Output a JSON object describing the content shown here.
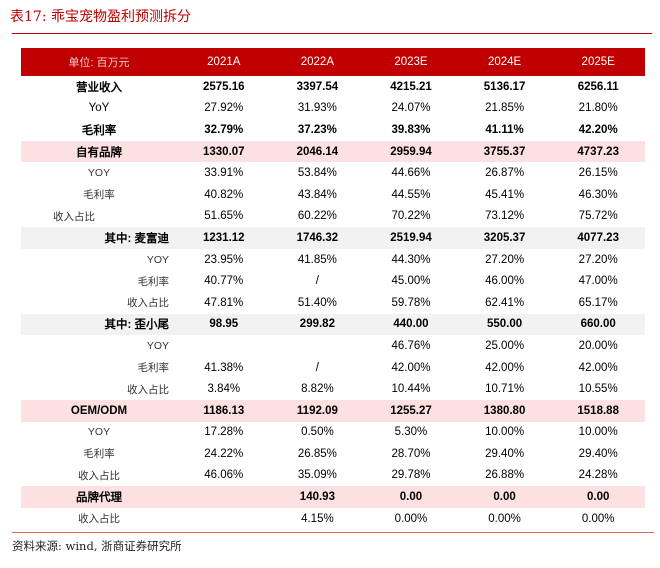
{
  "title": "表17:  乖宝宠物盈利预测拆分",
  "header": [
    "单位: 百万元",
    "2021A",
    "2022A",
    "2023E",
    "2024E",
    "2025E"
  ],
  "rows": [
    {
      "label": "营业收入",
      "v": [
        "2575.16",
        "3397.54",
        "4215.21",
        "5136.17",
        "6256.11"
      ]
    },
    {
      "label": "YoY",
      "v": [
        "27.92%",
        "31.93%",
        "24.07%",
        "21.85%",
        "21.80%"
      ]
    },
    {
      "label": "毛利率",
      "v": [
        "32.79%",
        "37.23%",
        "39.83%",
        "41.11%",
        "42.20%"
      ]
    },
    {
      "label": "自有品牌",
      "v": [
        "1330.07",
        "2046.14",
        "2959.94",
        "3755.37",
        "4737.23"
      ]
    },
    {
      "label": "YOY",
      "v": [
        "33.91%",
        "53.84%",
        "44.66%",
        "26.87%",
        "26.15%"
      ]
    },
    {
      "label": "毛利率",
      "v": [
        "40.82%",
        "43.84%",
        "44.55%",
        "45.41%",
        "46.30%"
      ]
    },
    {
      "label": "收入占比",
      "v": [
        "51.65%",
        "60.22%",
        "70.22%",
        "73.12%",
        "75.72%"
      ]
    },
    {
      "label": "其中: 麦富迪",
      "v": [
        "1231.12",
        "1746.32",
        "2519.94",
        "3205.37",
        "4077.23"
      ]
    },
    {
      "label": "YOY",
      "v": [
        "23.95%",
        "41.85%",
        "44.30%",
        "27.20%",
        "27.20%"
      ]
    },
    {
      "label": "毛利率",
      "v": [
        "40.77%",
        "/",
        "45.00%",
        "46.00%",
        "47.00%"
      ]
    },
    {
      "label": "收入占比",
      "v": [
        "47.81%",
        "51.40%",
        "59.78%",
        "62.41%",
        "65.17%"
      ]
    },
    {
      "label": "其中: 歪小尾",
      "v": [
        "98.95",
        "299.82",
        "440.00",
        "550.00",
        "660.00"
      ]
    },
    {
      "label": "YOY",
      "v": [
        "",
        "",
        "46.76%",
        "25.00%",
        "20.00%"
      ]
    },
    {
      "label": "毛利率",
      "v": [
        "41.38%",
        "/",
        "42.00%",
        "42.00%",
        "42.00%"
      ]
    },
    {
      "label": "收入占比",
      "v": [
        "3.84%",
        "8.82%",
        "10.44%",
        "10.71%",
        "10.55%"
      ]
    },
    {
      "label": "OEM/ODM",
      "v": [
        "1186.13",
        "1192.09",
        "1255.27",
        "1380.80",
        "1518.88"
      ]
    },
    {
      "label": "YOY",
      "v": [
        "17.28%",
        "0.50%",
        "5.30%",
        "10.00%",
        "10.00%"
      ]
    },
    {
      "label": "毛利率",
      "v": [
        "24.22%",
        "26.85%",
        "28.70%",
        "29.40%",
        "29.40%"
      ]
    },
    {
      "label": "收入占比",
      "v": [
        "46.06%",
        "35.09%",
        "29.78%",
        "26.88%",
        "24.28%"
      ]
    },
    {
      "label": "品牌代理",
      "v": [
        "",
        "140.93",
        "0.00",
        "0.00",
        "0.00"
      ]
    },
    {
      "label": "收入占比",
      "v": [
        "",
        "4.15%",
        "0.00%",
        "0.00%",
        "0.00%"
      ]
    }
  ],
  "source": "资料来源: wind, 浙商证券研究所",
  "colors": {
    "header": "#c00000",
    "pink": "#fde0e2",
    "grey": "#f2f2f2"
  }
}
